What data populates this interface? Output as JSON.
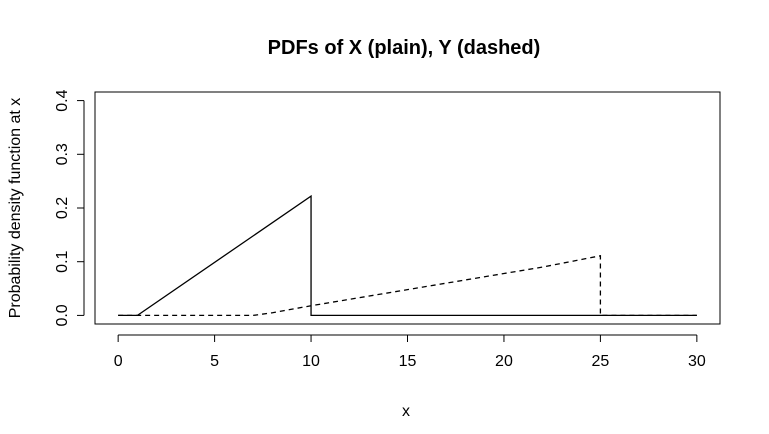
{
  "chart_data": {
    "type": "line",
    "title": "PDFs of X (plain), Y (dashed)",
    "xlabel": "x",
    "ylabel": "Probability density function at x",
    "xlim": [
      -1.2,
      31.2
    ],
    "ylim": [
      -0.016,
      0.416
    ],
    "x_ticks": [
      "0",
      "5",
      "10",
      "15",
      "20",
      "25",
      "30"
    ],
    "y_ticks": [
      "0.0",
      "0.1",
      "0.2",
      "0.3",
      "0.4"
    ],
    "grid": false,
    "legend": "none",
    "series": [
      {
        "style": "solid",
        "x": [
          0,
          1,
          10,
          10,
          30
        ],
        "y": [
          0,
          0,
          0.2222,
          0,
          0
        ]
      },
      {
        "style": "dashed",
        "x": [
          0,
          7,
          8,
          10,
          12,
          15,
          18,
          20,
          22,
          25,
          25,
          30
        ],
        "y": [
          0,
          0,
          0.005,
          0.018,
          0.03,
          0.048,
          0.066,
          0.078,
          0.09,
          0.111,
          0,
          0
        ]
      }
    ]
  }
}
